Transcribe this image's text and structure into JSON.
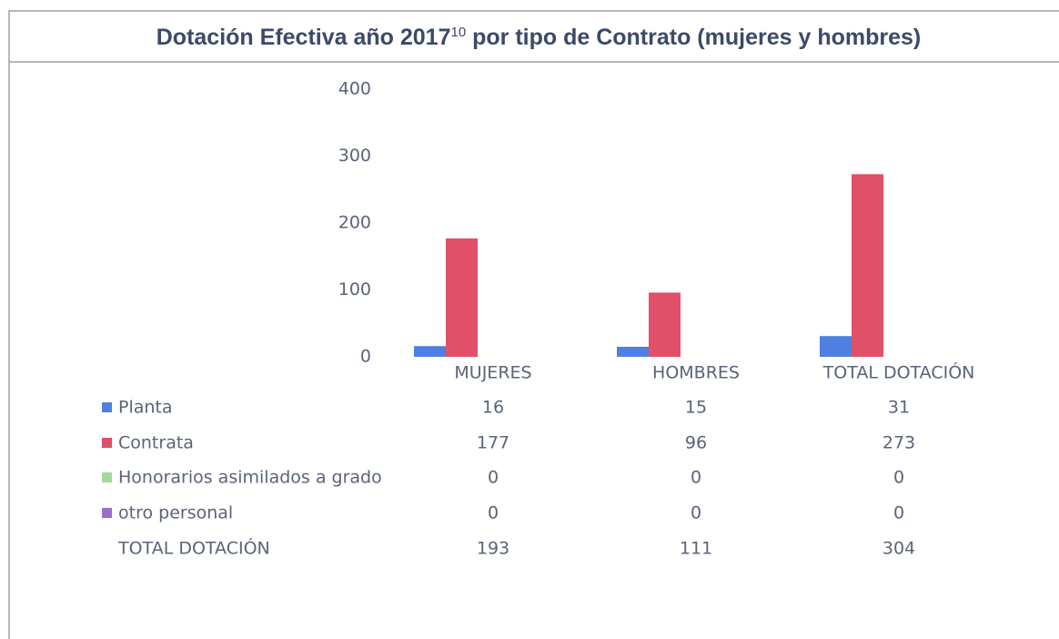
{
  "chart_data": {
    "type": "bar",
    "title_parts": [
      "Dotación Efectiva año 2017",
      "10",
      " por tipo de Contrato (mujeres y hombres)"
    ],
    "categories": [
      "MUJERES",
      "HOMBRES",
      "TOTAL DOTACIÓN"
    ],
    "series": [
      {
        "name": "Planta",
        "color": "#4f7fe0",
        "values": [
          16,
          15,
          31
        ]
      },
      {
        "name": "Contrata",
        "color": "#e05068",
        "values": [
          177,
          96,
          273
        ]
      },
      {
        "name": "Honorarios asimilados a grado",
        "color": "#a6d89a",
        "values": [
          0,
          0,
          0
        ]
      },
      {
        "name": "otro personal",
        "color": "#9a70c8",
        "values": [
          0,
          0,
          0
        ]
      }
    ],
    "totals": {
      "name": "TOTAL DOTACIÓN",
      "values": [
        193,
        111,
        304
      ]
    },
    "ylim": [
      0,
      400
    ],
    "yticks": [
      0,
      100,
      200,
      300,
      400
    ],
    "grid": false
  }
}
